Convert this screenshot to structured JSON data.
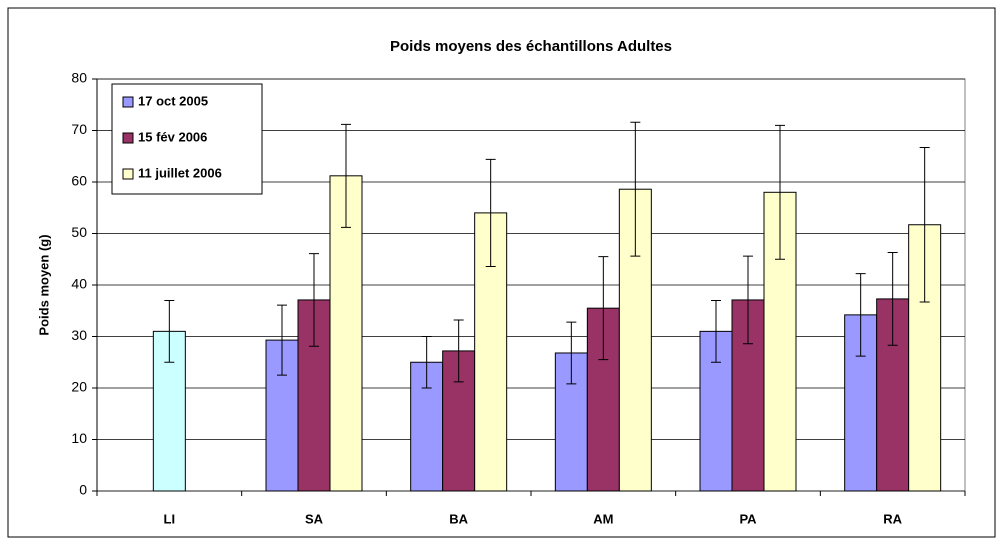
{
  "chart_data": {
    "type": "bar",
    "title": "Poids moyens des échantillons Adultes",
    "y_label": "Poids moyen (g)",
    "categories": [
      "LI",
      "SA",
      "BA",
      "AM",
      "PA",
      "RA"
    ],
    "series": [
      {
        "name": "17 oct 2005",
        "color": "#9999ff",
        "point_colors": {
          "0": "#ccffff"
        },
        "values": [
          31,
          29.3,
          25,
          26.8,
          31,
          34.2
        ],
        "errors": [
          6,
          6.8,
          5,
          6,
          6,
          8
        ]
      },
      {
        "name": "15 fév 2006",
        "color": "#993366",
        "values": [
          null,
          37.1,
          27.2,
          35.5,
          37.1,
          37.3
        ],
        "errors": [
          null,
          9,
          6,
          10,
          8.5,
          9
        ]
      },
      {
        "name": "11 juillet 2006",
        "color": "#ffffcc",
        "values": [
          null,
          61.2,
          54,
          58.6,
          58,
          51.7
        ],
        "errors": [
          null,
          10,
          10.4,
          13,
          13,
          15
        ]
      }
    ],
    "ylim": [
      0,
      80
    ],
    "yticks": [
      0,
      10,
      20,
      30,
      40,
      50,
      60,
      70,
      80
    ],
    "grid": true,
    "legend": "top-left"
  }
}
